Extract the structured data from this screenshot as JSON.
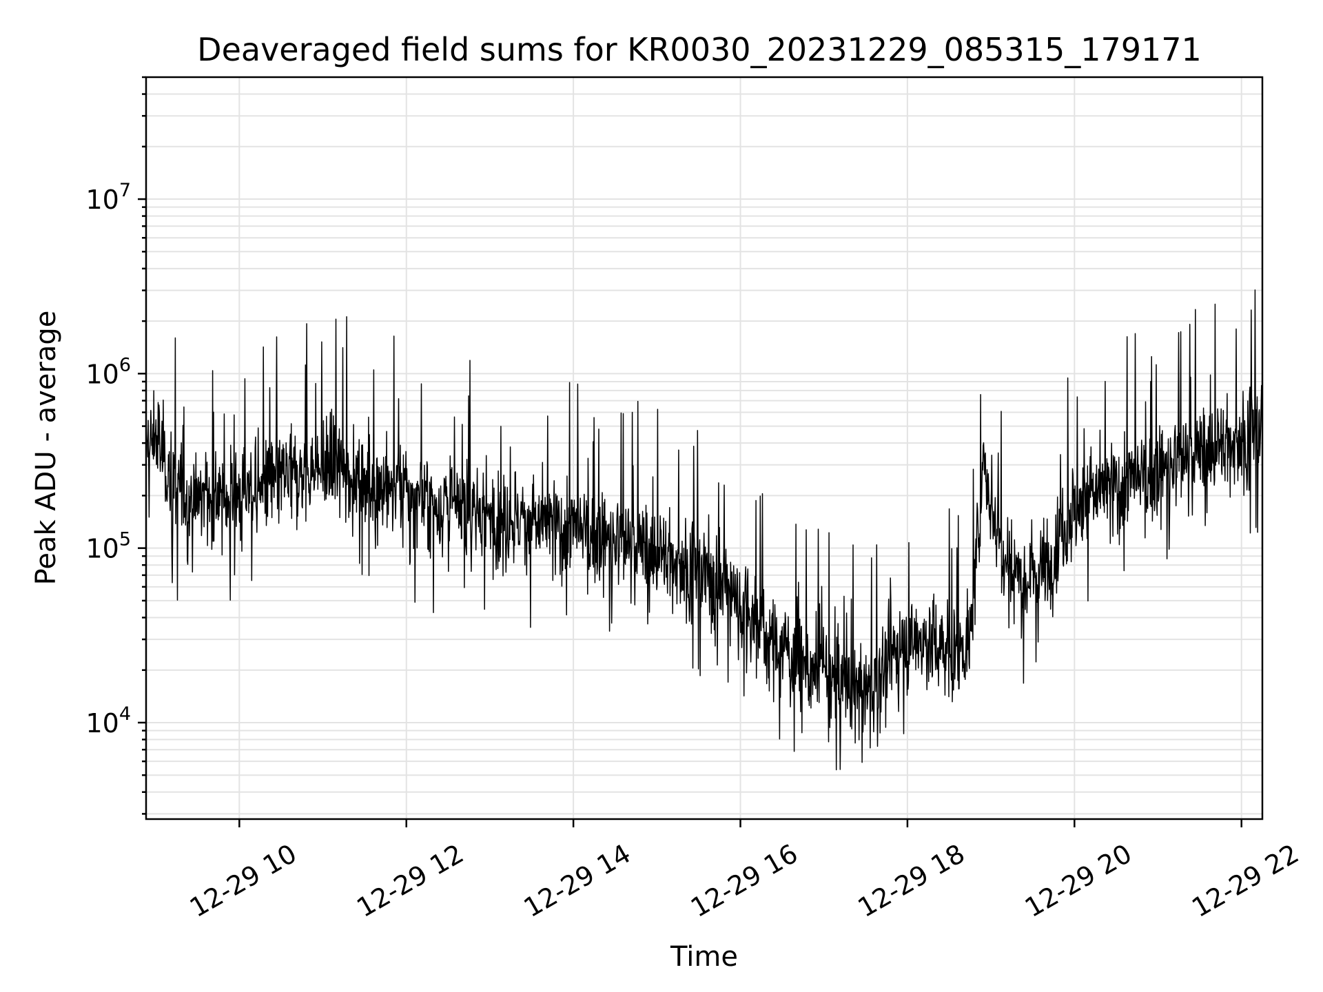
{
  "chart_data": {
    "type": "line",
    "title": "Deaveraged field sums for KR0030_20231229_085315_179171",
    "xlabel": "Time",
    "ylabel": "Peak ADU - average",
    "yscale": "log",
    "ylim": [
      2800,
      50000000
    ],
    "xlim": [
      "2023-12-29 08:53",
      "2023-12-29 22:15"
    ],
    "grid": true,
    "line_color": "#000000",
    "x_ticks": [
      "12-29 10",
      "12-29 12",
      "12-29 14",
      "12-29 16",
      "12-29 18",
      "12-29 20",
      "12-29 22"
    ],
    "y_ticks": [
      {
        "base": "10",
        "exp": "4",
        "value": 10000
      },
      {
        "base": "10",
        "exp": "5",
        "value": 100000
      },
      {
        "base": "10",
        "exp": "6",
        "value": 1000000
      },
      {
        "base": "10",
        "exp": "7",
        "value": 10000000
      }
    ],
    "series": [
      {
        "x": [
          "2023-12-29 08:53",
          "2023-12-29 09:00",
          "2023-12-29 09:07",
          "2023-12-29 09:15",
          "2023-12-29 09:25",
          "2023-12-29 09:35",
          "2023-12-29 09:50",
          "2023-12-29 10:05",
          "2023-12-29 10:20",
          "2023-12-29 10:40",
          "2023-12-29 11:00",
          "2023-12-29 11:15",
          "2023-12-29 11:30",
          "2023-12-29 11:50",
          "2023-12-29 12:10",
          "2023-12-29 12:30",
          "2023-12-29 12:50",
          "2023-12-29 13:10",
          "2023-12-29 13:30",
          "2023-12-29 13:50",
          "2023-12-29 14:10",
          "2023-12-29 14:30",
          "2023-12-29 14:50",
          "2023-12-29 15:05",
          "2023-12-29 15:20",
          "2023-12-29 15:35",
          "2023-12-29 15:50",
          "2023-12-29 16:05",
          "2023-12-29 16:20",
          "2023-12-29 16:35",
          "2023-12-29 16:50",
          "2023-12-29 17:05",
          "2023-12-29 17:20",
          "2023-12-29 17:35",
          "2023-12-29 17:50",
          "2023-12-29 18:05",
          "2023-12-29 18:20",
          "2023-12-29 18:35",
          "2023-12-29 18:45",
          "2023-12-29 18:55",
          "2023-12-29 19:05",
          "2023-12-29 19:15",
          "2023-12-29 19:25",
          "2023-12-29 19:40",
          "2023-12-29 19:55",
          "2023-12-29 20:10",
          "2023-12-29 20:30",
          "2023-12-29 20:50",
          "2023-12-29 21:10",
          "2023-12-29 21:30",
          "2023-12-29 21:45",
          "2023-12-29 22:00",
          "2023-12-29 22:15"
        ],
        "values": [
          350000,
          450000,
          300000,
          220000,
          180000,
          200000,
          190000,
          210000,
          230000,
          260000,
          280000,
          290000,
          240000,
          220000,
          190000,
          170000,
          160000,
          150000,
          140000,
          130000,
          120000,
          110000,
          100000,
          90000,
          80000,
          70000,
          60000,
          45000,
          30000,
          25000,
          20000,
          18000,
          16000,
          15000,
          25000,
          30000,
          28000,
          25000,
          30000,
          300000,
          120000,
          80000,
          70000,
          80000,
          150000,
          200000,
          220000,
          250000,
          300000,
          350000,
          380000,
          420000,
          500000
        ]
      }
    ]
  }
}
